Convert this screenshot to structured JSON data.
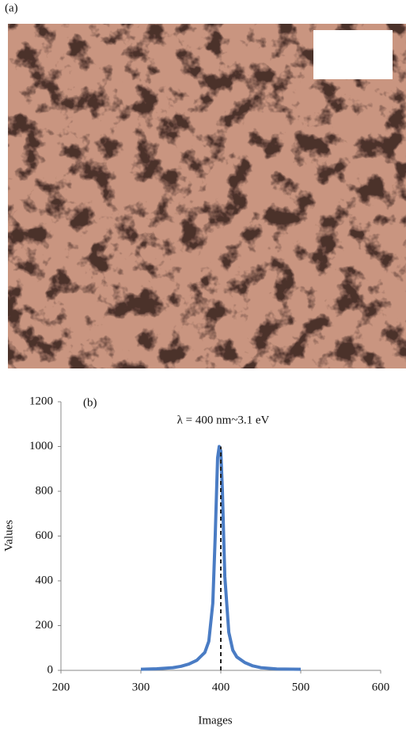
{
  "figure": {
    "panel_a_label": "(a)"
  },
  "chart_data": {
    "type": "line",
    "panel_label": "(b)",
    "title": "λ = 400 nm~3.1 eV",
    "x_label": "Images",
    "y_label": "Values",
    "x": [
      300,
      320,
      340,
      350,
      360,
      370,
      380,
      385,
      390,
      393,
      396,
      398,
      400,
      402,
      405,
      410,
      415,
      420,
      430,
      440,
      450,
      470,
      500
    ],
    "series": [
      {
        "color": "#4a7cc4",
        "values": [
          5,
          7,
          12,
          18,
          28,
          45,
          80,
          130,
          300,
          600,
          950,
          1000,
          980,
          800,
          420,
          170,
          90,
          60,
          35,
          20,
          12,
          6,
          5
        ]
      }
    ],
    "vline": {
      "x": 400,
      "y": 1000
    },
    "xlim": [
      200,
      600
    ],
    "ylim": [
      0,
      1200
    ],
    "xticks": [
      200,
      300,
      400,
      500,
      600
    ],
    "yticks": [
      0,
      200,
      400,
      600,
      800,
      1000,
      1200
    ]
  }
}
